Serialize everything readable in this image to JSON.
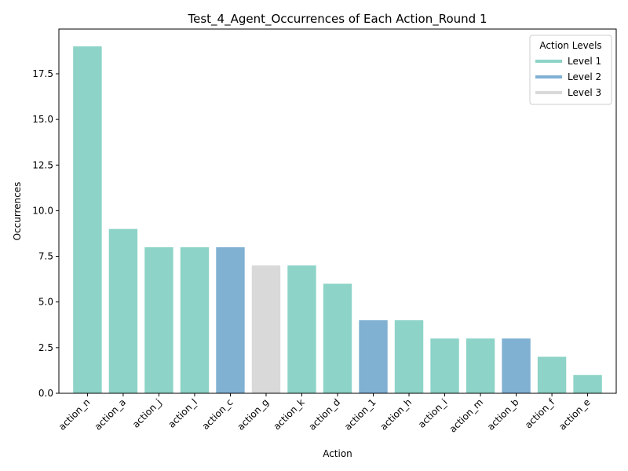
{
  "chart_data": {
    "type": "bar",
    "title": "Test_4_Agent_Occurrences of Each Action_Round 1",
    "xlabel": "Action",
    "ylabel": "Occurrences",
    "ylim": [
      0,
      19.95
    ],
    "yticks": [
      0.0,
      2.5,
      5.0,
      7.5,
      10.0,
      12.5,
      15.0,
      17.5
    ],
    "ytick_labels": [
      "0.0",
      "2.5",
      "5.0",
      "7.5",
      "10.0",
      "12.5",
      "15.0",
      "17.5"
    ],
    "categories": [
      "action_n",
      "action_a",
      "action_j",
      "action_l",
      "action_c",
      "action_g",
      "action_k",
      "action_d",
      "action_1",
      "action_h",
      "action_i",
      "action_m",
      "action_b",
      "action_f",
      "action_e"
    ],
    "values": [
      19,
      9,
      8,
      8,
      8,
      7,
      7,
      6,
      4,
      4,
      3,
      3,
      3,
      2,
      1
    ],
    "levels": [
      1,
      1,
      1,
      1,
      2,
      3,
      1,
      1,
      2,
      1,
      1,
      1,
      2,
      1,
      1
    ],
    "grid": false,
    "legend": {
      "title": "Action Levels",
      "placement": "top-right",
      "entries": [
        {
          "level": 1,
          "label": "Level 1",
          "color": "#8dd3c7"
        },
        {
          "level": 2,
          "label": "Level 2",
          "color": "#80b1d3"
        },
        {
          "level": 3,
          "label": "Level 3",
          "color": "#d9d9d9"
        }
      ]
    }
  }
}
